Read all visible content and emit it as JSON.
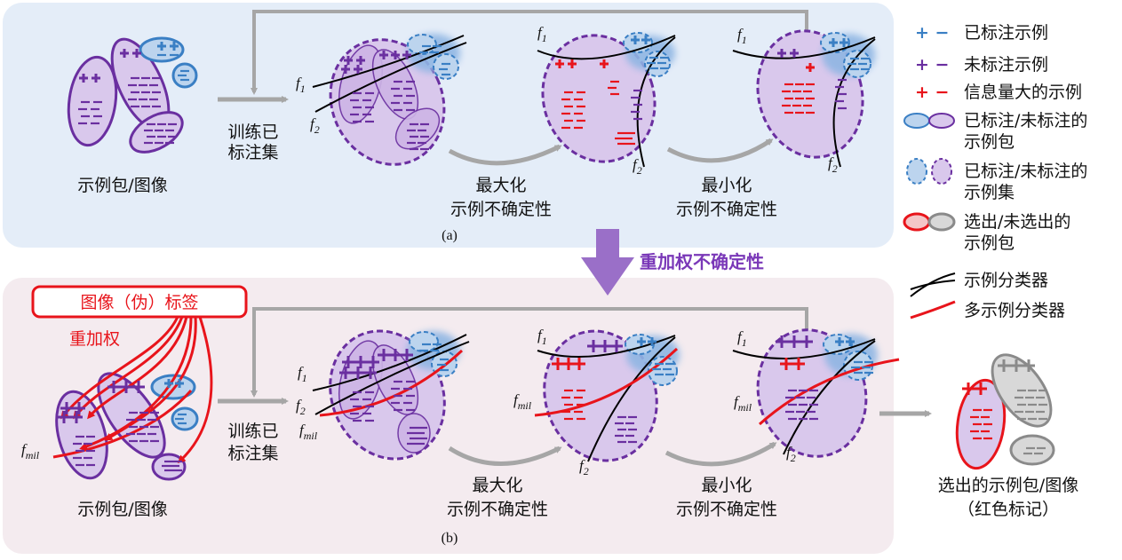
{
  "panel_a": {
    "bags_caption": "示例包/图像",
    "train_label_1": "训练已",
    "train_label_2": "标注集",
    "max_1": "最大化",
    "max_2": "示例不确定性",
    "min_1": "最小化",
    "min_2": "示例不确定性",
    "sublabel": "(a)"
  },
  "middle_label": "重加权不确定性",
  "panel_b": {
    "image_label_box": "图像（伪）标签",
    "reweight": "重加权",
    "bags_caption": "示例包/图像",
    "train_label_1": "训练已",
    "train_label_2": "标注集",
    "max_1": "最大化",
    "max_2": "示例不确定性",
    "min_1": "最小化",
    "min_2": "示例不确定性",
    "sublabel": "(b)",
    "selected_1": "选出的示例包/图像",
    "selected_2": "（红色标记）"
  },
  "classifiers": {
    "f1": "f",
    "f1_sub": "1",
    "f2": "f",
    "f2_sub": "2",
    "fmil": "f",
    "fmil_sub": "mil"
  },
  "legend": [
    {
      "symbol": "+ −",
      "text": "已标注示例",
      "color": "#3a7fc4"
    },
    {
      "symbol": "+ −",
      "text": "未标注示例",
      "color": "#6a2fa0"
    },
    {
      "symbol": "+ −",
      "text": "信息量大的示例",
      "color": "#e8141b"
    },
    {
      "symbol": "ellipse",
      "text": "已标注/未标注的",
      "text2": "示例包"
    },
    {
      "symbol": "dashed-ellipse",
      "text": "已标注/未标注的",
      "text2": "示例集"
    },
    {
      "symbol": "selected-ellipse",
      "text": "选出/未选出的",
      "text2": "示例包"
    },
    {
      "symbol": "black-lines",
      "text": "示例分类器"
    },
    {
      "symbol": "red-line",
      "text": "多示例分类器"
    }
  ],
  "colors": {
    "labeled": "#3a7fc4",
    "unlabeled": "#6a2fa0",
    "informative": "#e8141b",
    "panel_a_bg": "#e4edf8",
    "panel_b_bg": "#f4ebef",
    "arrow_gray": "#a6a6a6",
    "mid_arrow": "#9a6fc8"
  }
}
